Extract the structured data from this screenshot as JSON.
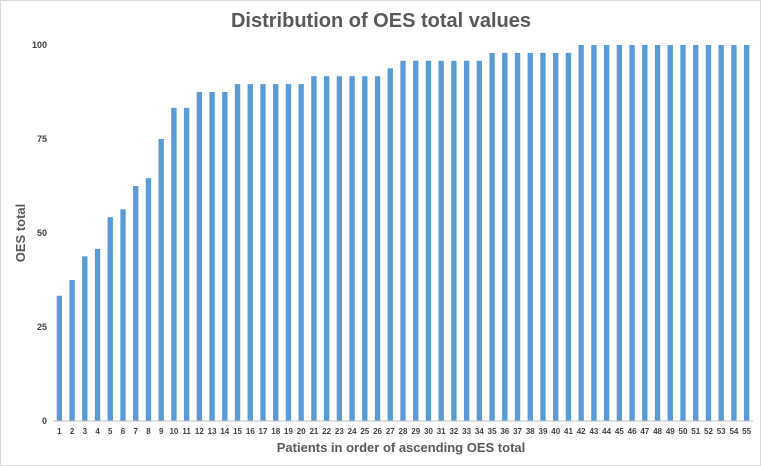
{
  "chart_data": {
    "type": "bar",
    "title": "Distribution of OES total values",
    "xlabel": "Patients in order of ascending OES total",
    "ylabel": "OES total",
    "ylim": [
      0,
      100
    ],
    "yticks": [
      0,
      25,
      50,
      75,
      100
    ],
    "grid": false,
    "bar_color": "#5b9bd5",
    "categories": [
      "1",
      "2",
      "3",
      "4",
      "5",
      "6",
      "7",
      "8",
      "9",
      "10",
      "11",
      "12",
      "13",
      "14",
      "15",
      "16",
      "17",
      "18",
      "19",
      "20",
      "21",
      "22",
      "23",
      "24",
      "25",
      "26",
      "27",
      "28",
      "29",
      "30",
      "31",
      "32",
      "33",
      "34",
      "35",
      "36",
      "37",
      "38",
      "39",
      "40",
      "41",
      "42",
      "43",
      "44",
      "45",
      "46",
      "47",
      "48",
      "49",
      "50",
      "51",
      "52",
      "53",
      "54",
      "55"
    ],
    "values": [
      33.3,
      37.5,
      43.8,
      45.8,
      54.2,
      56.3,
      62.5,
      64.6,
      75,
      83.3,
      83.3,
      87.5,
      87.5,
      87.5,
      89.6,
      89.6,
      89.6,
      89.6,
      89.6,
      89.6,
      91.7,
      91.7,
      91.7,
      91.7,
      91.7,
      91.7,
      93.8,
      95.8,
      95.8,
      95.8,
      95.8,
      95.8,
      95.8,
      95.8,
      97.9,
      97.9,
      97.9,
      97.9,
      97.9,
      97.9,
      97.9,
      100,
      100,
      100,
      100,
      100,
      100,
      100,
      100,
      100,
      100,
      100,
      100,
      100,
      100
    ]
  }
}
